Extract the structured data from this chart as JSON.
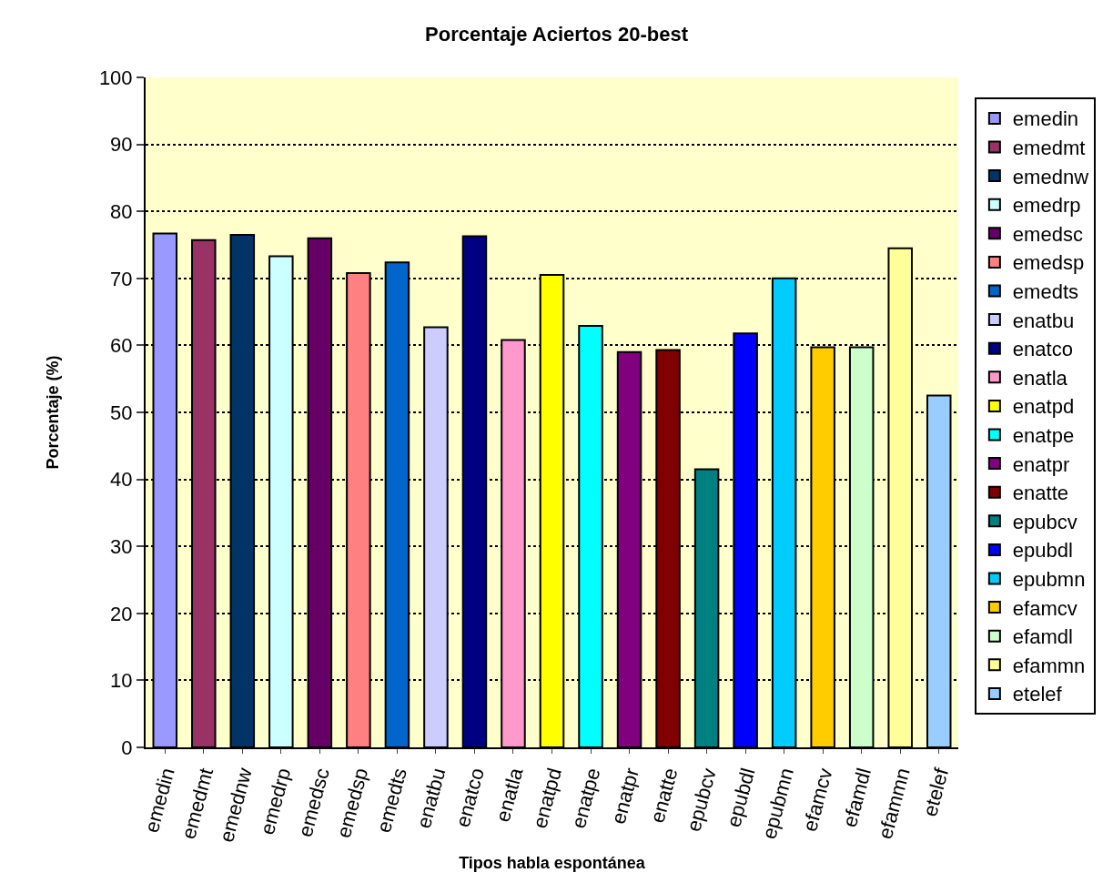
{
  "chart_data": {
    "type": "bar",
    "title": "Porcentaje Aciertos 20-best",
    "xlabel": "Tipos habla espontánea",
    "ylabel": "Porcentaje (%)",
    "categories": [
      "emedin",
      "emedmt",
      "emednw",
      "emedrp",
      "emedsc",
      "emedsp",
      "emedts",
      "enatbu",
      "enatco",
      "enatla",
      "enatpd",
      "enatpe",
      "enatpr",
      "enatte",
      "epubcv",
      "epubdl",
      "epubmn",
      "efamcv",
      "efamdl",
      "efammn",
      "etelef"
    ],
    "series": [
      {
        "name": "emedin",
        "color": "#9999ff",
        "values": [
          76.7,
          null,
          null,
          null,
          null,
          null,
          null,
          null,
          null,
          null,
          null,
          null,
          null,
          null,
          null,
          null,
          null,
          null,
          null,
          null,
          null
        ]
      },
      {
        "name": "emedmt",
        "color": "#993366",
        "values": [
          null,
          75.7,
          null,
          null,
          null,
          null,
          null,
          null,
          null,
          null,
          null,
          null,
          null,
          null,
          null,
          null,
          null,
          null,
          null,
          null,
          null
        ]
      },
      {
        "name": "emednw",
        "color": "#003366",
        "values": [
          null,
          null,
          76.5,
          null,
          null,
          null,
          null,
          null,
          null,
          null,
          null,
          null,
          null,
          null,
          null,
          null,
          null,
          null,
          null,
          null,
          null
        ]
      },
      {
        "name": "emedrp",
        "color": "#ccffff",
        "values": [
          null,
          null,
          null,
          73.3,
          null,
          null,
          null,
          null,
          null,
          null,
          null,
          null,
          null,
          null,
          null,
          null,
          null,
          null,
          null,
          null,
          null
        ]
      },
      {
        "name": "emedsc",
        "color": "#660066",
        "values": [
          null,
          null,
          null,
          null,
          76.0,
          null,
          null,
          null,
          null,
          null,
          null,
          null,
          null,
          null,
          null,
          null,
          null,
          null,
          null,
          null,
          null
        ]
      },
      {
        "name": "emedsp",
        "color": "#ff8080",
        "values": [
          null,
          null,
          null,
          null,
          null,
          70.8,
          null,
          null,
          null,
          null,
          null,
          null,
          null,
          null,
          null,
          null,
          null,
          null,
          null,
          null,
          null
        ]
      },
      {
        "name": "emedts",
        "color": "#0066cc",
        "values": [
          null,
          null,
          null,
          null,
          null,
          null,
          72.4,
          null,
          null,
          null,
          null,
          null,
          null,
          null,
          null,
          null,
          null,
          null,
          null,
          null,
          null
        ]
      },
      {
        "name": "enatbu",
        "color": "#ccccff",
        "values": [
          null,
          null,
          null,
          null,
          null,
          null,
          null,
          62.7,
          null,
          null,
          null,
          null,
          null,
          null,
          null,
          null,
          null,
          null,
          null,
          null,
          null
        ]
      },
      {
        "name": "enatco",
        "color": "#000080",
        "values": [
          null,
          null,
          null,
          null,
          null,
          null,
          null,
          null,
          76.3,
          null,
          null,
          null,
          null,
          null,
          null,
          null,
          null,
          null,
          null,
          null,
          null
        ]
      },
      {
        "name": "enatla",
        "color": "#ff99cc",
        "values": [
          null,
          null,
          null,
          null,
          null,
          null,
          null,
          null,
          null,
          60.8,
          null,
          null,
          null,
          null,
          null,
          null,
          null,
          null,
          null,
          null,
          null
        ]
      },
      {
        "name": "enatpd",
        "color": "#ffff00",
        "values": [
          null,
          null,
          null,
          null,
          null,
          null,
          null,
          null,
          null,
          null,
          70.5,
          null,
          null,
          null,
          null,
          null,
          null,
          null,
          null,
          null,
          null
        ]
      },
      {
        "name": "enatpe",
        "color": "#00ffff",
        "values": [
          null,
          null,
          null,
          null,
          null,
          null,
          null,
          null,
          null,
          null,
          null,
          62.9,
          null,
          null,
          null,
          null,
          null,
          null,
          null,
          null,
          null
        ]
      },
      {
        "name": "enatpr",
        "color": "#800080",
        "values": [
          null,
          null,
          null,
          null,
          null,
          null,
          null,
          null,
          null,
          null,
          null,
          null,
          59.0,
          null,
          null,
          null,
          null,
          null,
          null,
          null,
          null
        ]
      },
      {
        "name": "enatte",
        "color": "#800000",
        "values": [
          null,
          null,
          null,
          null,
          null,
          null,
          null,
          null,
          null,
          null,
          null,
          null,
          null,
          59.3,
          null,
          null,
          null,
          null,
          null,
          null,
          null
        ]
      },
      {
        "name": "epubcv",
        "color": "#008080",
        "values": [
          null,
          null,
          null,
          null,
          null,
          null,
          null,
          null,
          null,
          null,
          null,
          null,
          null,
          null,
          41.5,
          null,
          null,
          null,
          null,
          null,
          null
        ]
      },
      {
        "name": "epubdl",
        "color": "#0000ff",
        "values": [
          null,
          null,
          null,
          null,
          null,
          null,
          null,
          null,
          null,
          null,
          null,
          null,
          null,
          null,
          null,
          61.8,
          null,
          null,
          null,
          null,
          null
        ]
      },
      {
        "name": "epubmn",
        "color": "#00ccff",
        "values": [
          null,
          null,
          null,
          null,
          null,
          null,
          null,
          null,
          null,
          null,
          null,
          null,
          null,
          null,
          null,
          null,
          70.0,
          null,
          null,
          null,
          null
        ]
      },
      {
        "name": "efamcv",
        "color": "#ffcc00",
        "values": [
          null,
          null,
          null,
          null,
          null,
          null,
          null,
          null,
          null,
          null,
          null,
          null,
          null,
          null,
          null,
          null,
          null,
          59.7,
          null,
          null,
          null
        ]
      },
      {
        "name": "efamdl",
        "color": "#ccffcc",
        "values": [
          null,
          null,
          null,
          null,
          null,
          null,
          null,
          null,
          null,
          null,
          null,
          null,
          null,
          null,
          null,
          null,
          null,
          null,
          59.7,
          null,
          null
        ]
      },
      {
        "name": "efammn",
        "color": "#ffff99",
        "values": [
          null,
          null,
          null,
          null,
          null,
          null,
          null,
          null,
          null,
          null,
          null,
          null,
          null,
          null,
          null,
          null,
          null,
          null,
          null,
          74.5,
          null
        ]
      },
      {
        "name": "etelef",
        "color": "#99ccff",
        "values": [
          null,
          null,
          null,
          null,
          null,
          null,
          null,
          null,
          null,
          null,
          null,
          null,
          null,
          null,
          null,
          null,
          null,
          null,
          null,
          null,
          52.5
        ]
      }
    ],
    "ylim": [
      0,
      100
    ],
    "yticks": [
      0,
      10,
      20,
      30,
      40,
      50,
      60,
      70,
      80,
      90,
      100
    ],
    "grid": "y",
    "legend": "right"
  }
}
